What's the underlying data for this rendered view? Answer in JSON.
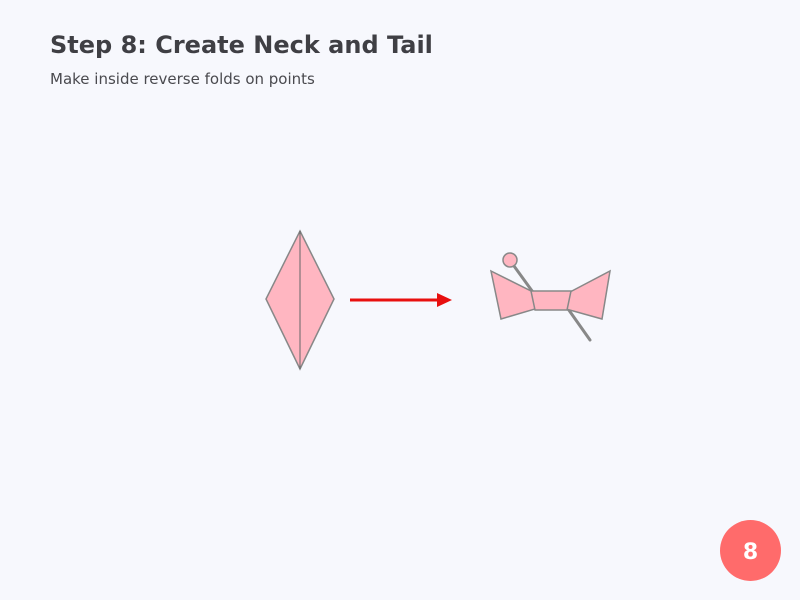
{
  "header": {
    "title": "Step 8: Create Neck and Tail",
    "subtitle": "Make inside reverse folds on points"
  },
  "step_badge": {
    "number": "8",
    "color": "#ff6b6b"
  },
  "colors": {
    "paper_fill": "#ffb6c1",
    "paper_stroke": "#888888",
    "crease": "#666666",
    "arrow": "#e8100f"
  },
  "diagram": {
    "before_icon": "folded-diamond",
    "transition_icon": "right-arrow",
    "after_icon": "crane-with-neck-and-tail"
  }
}
